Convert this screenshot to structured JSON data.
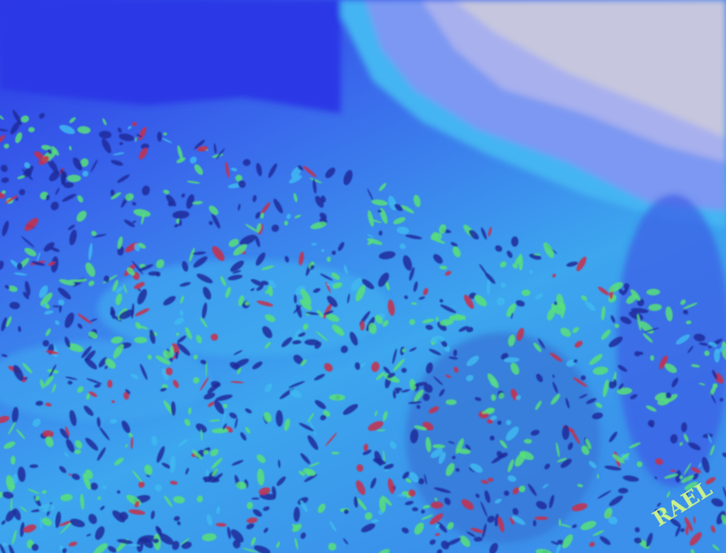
{
  "image": {
    "colors": {
      "deep_blue": "#2f3fe6",
      "mid_blue": "#3a86ee",
      "cyan": "#3fb8f0",
      "light_gray": "#c4c4dc",
      "lavender": "#8c9cf0",
      "dark_blue_outline": "#1c2a9a",
      "green_speckle": "#58e07a",
      "red_speckle": "#c8304a",
      "watermark": "#c8f08c"
    }
  },
  "watermark": {
    "text": "RAEL"
  }
}
